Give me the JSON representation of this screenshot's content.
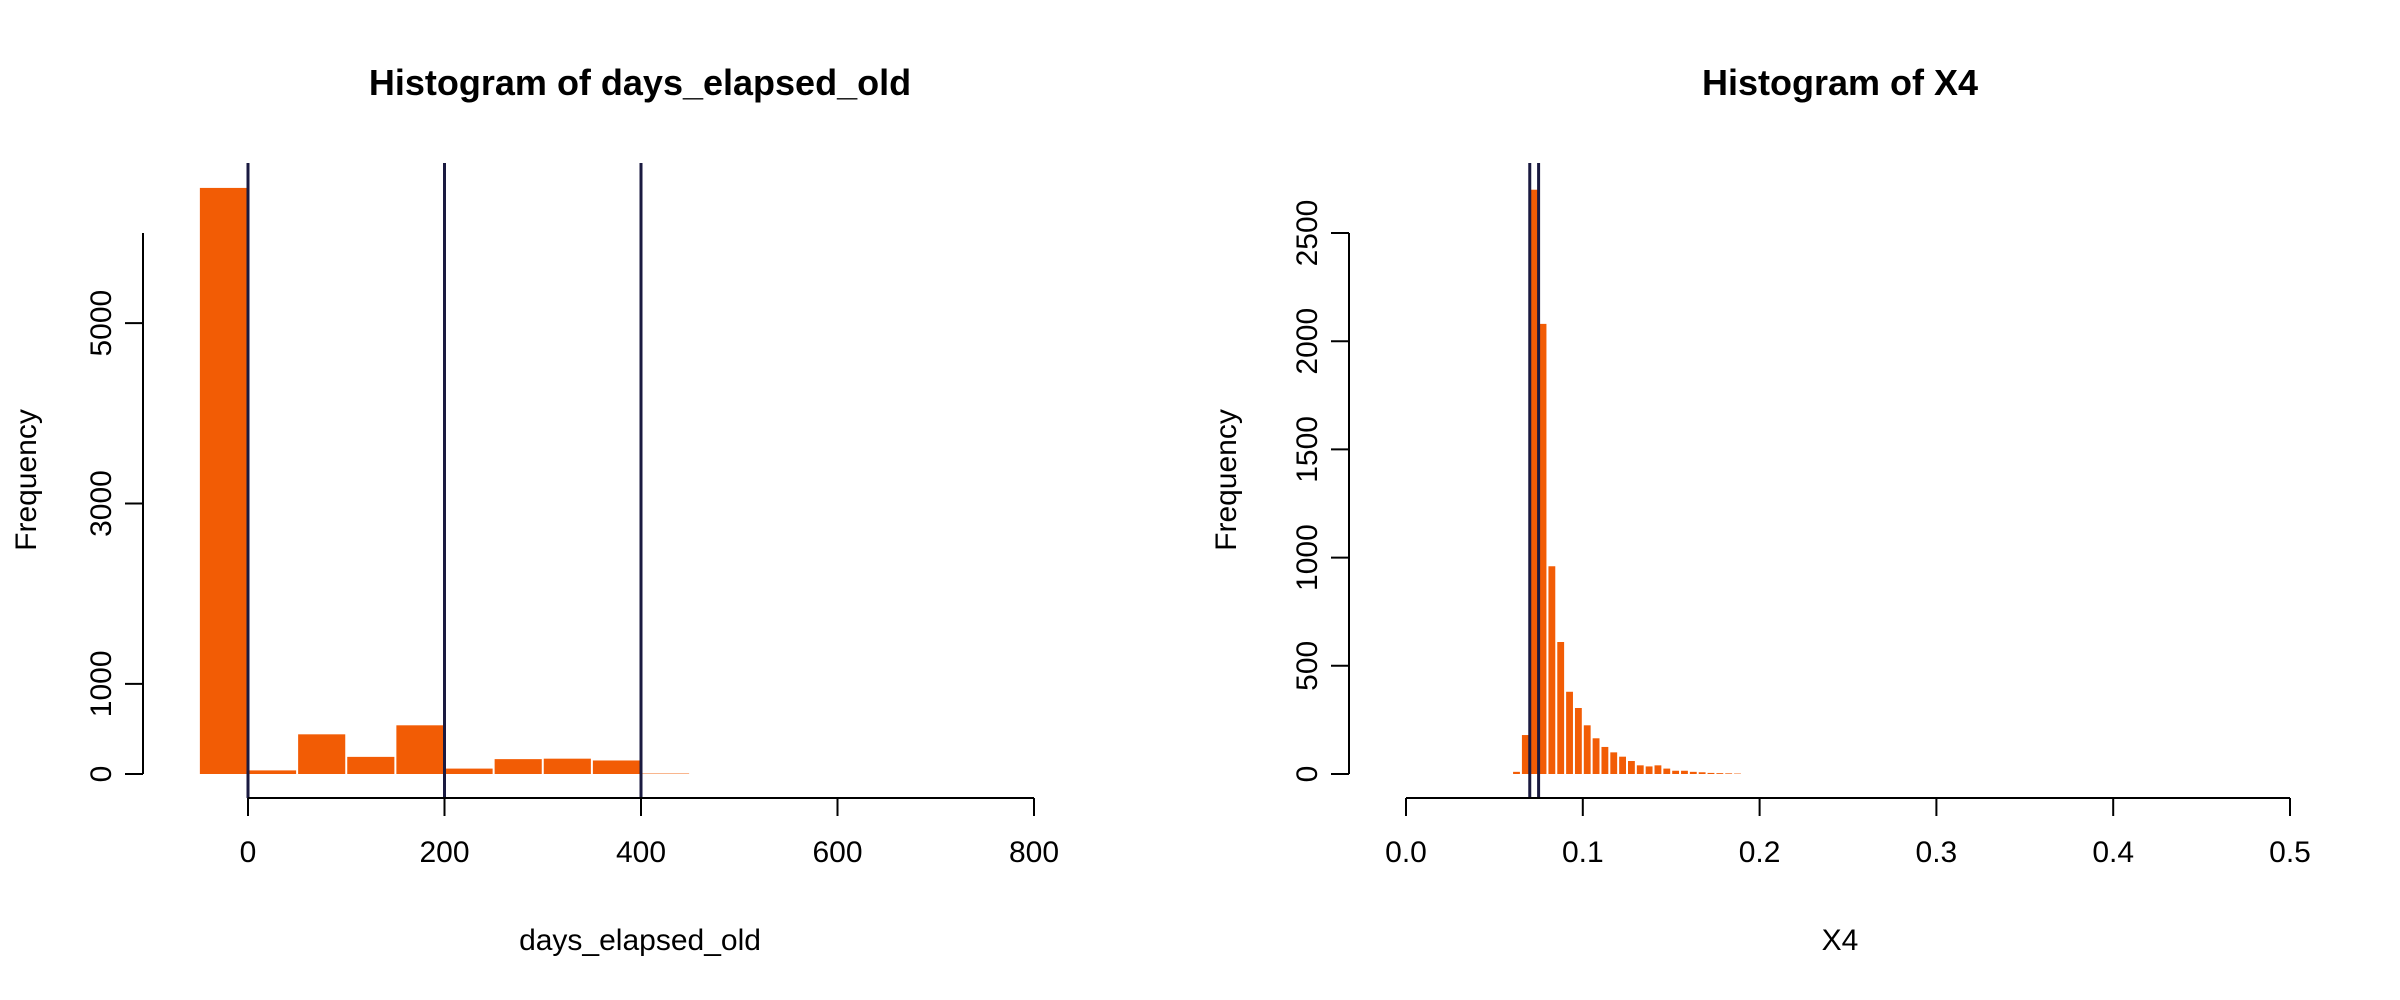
{
  "chart_data": [
    {
      "type": "bar",
      "title": "Histogram of days_elapsed_old",
      "xlabel": "days_elapsed_old",
      "ylabel": "Frequency",
      "xlim": [
        -100,
        800
      ],
      "ylim": [
        0,
        6500
      ],
      "xticks": [
        0,
        200,
        400,
        600,
        800
      ],
      "yticks": [
        0,
        1000,
        3000,
        5000
      ],
      "bins": [
        {
          "x0": -50,
          "x1": 0,
          "count": 6500
        },
        {
          "x0": 0,
          "x1": 50,
          "count": 40
        },
        {
          "x0": 50,
          "x1": 100,
          "count": 440
        },
        {
          "x0": 100,
          "x1": 150,
          "count": 190
        },
        {
          "x0": 150,
          "x1": 200,
          "count": 540
        },
        {
          "x0": 200,
          "x1": 250,
          "count": 60
        },
        {
          "x0": 250,
          "x1": 300,
          "count": 165
        },
        {
          "x0": 300,
          "x1": 350,
          "count": 170
        },
        {
          "x0": 350,
          "x1": 400,
          "count": 150
        },
        {
          "x0": 400,
          "x1": 450,
          "count": 5
        }
      ],
      "vlines": [
        0,
        200,
        400
      ],
      "bar_color": "#f25c05",
      "line_color": "#1a1a40",
      "grid": false
    },
    {
      "type": "bar",
      "title": "Histogram of X4",
      "xlabel": "X4",
      "ylabel": "Frequency",
      "xlim": [
        0,
        0.5
      ],
      "ylim": [
        0,
        2700
      ],
      "xticks": [
        "0.0",
        "0.1",
        "0.2",
        "0.3",
        "0.4",
        "0.5"
      ],
      "yticks": [
        0,
        500,
        1000,
        1500,
        2000,
        2500
      ],
      "bins": [
        {
          "x0": 0.06,
          "x1": 0.065,
          "count": 10
        },
        {
          "x0": 0.065,
          "x1": 0.07,
          "count": 180
        },
        {
          "x0": 0.07,
          "x1": 0.075,
          "count": 2700
        },
        {
          "x0": 0.075,
          "x1": 0.08,
          "count": 2080
        },
        {
          "x0": 0.08,
          "x1": 0.085,
          "count": 960
        },
        {
          "x0": 0.085,
          "x1": 0.09,
          "count": 610
        },
        {
          "x0": 0.09,
          "x1": 0.095,
          "count": 380
        },
        {
          "x0": 0.095,
          "x1": 0.1,
          "count": 305
        },
        {
          "x0": 0.1,
          "x1": 0.105,
          "count": 225
        },
        {
          "x0": 0.105,
          "x1": 0.11,
          "count": 165
        },
        {
          "x0": 0.11,
          "x1": 0.115,
          "count": 125
        },
        {
          "x0": 0.115,
          "x1": 0.12,
          "count": 100
        },
        {
          "x0": 0.12,
          "x1": 0.125,
          "count": 80
        },
        {
          "x0": 0.125,
          "x1": 0.13,
          "count": 60
        },
        {
          "x0": 0.13,
          "x1": 0.135,
          "count": 40
        },
        {
          "x0": 0.135,
          "x1": 0.14,
          "count": 35
        },
        {
          "x0": 0.14,
          "x1": 0.145,
          "count": 40
        },
        {
          "x0": 0.145,
          "x1": 0.15,
          "count": 25
        },
        {
          "x0": 0.15,
          "x1": 0.155,
          "count": 15
        },
        {
          "x0": 0.155,
          "x1": 0.16,
          "count": 15
        },
        {
          "x0": 0.16,
          "x1": 0.165,
          "count": 10
        },
        {
          "x0": 0.165,
          "x1": 0.17,
          "count": 8
        },
        {
          "x0": 0.17,
          "x1": 0.175,
          "count": 5
        },
        {
          "x0": 0.175,
          "x1": 0.18,
          "count": 4
        },
        {
          "x0": 0.18,
          "x1": 0.185,
          "count": 3
        },
        {
          "x0": 0.185,
          "x1": 0.19,
          "count": 2
        }
      ],
      "vlines": [
        0.07,
        0.075
      ],
      "bar_color": "#f25c05",
      "line_color": "#1a1a40",
      "grid": false
    }
  ]
}
